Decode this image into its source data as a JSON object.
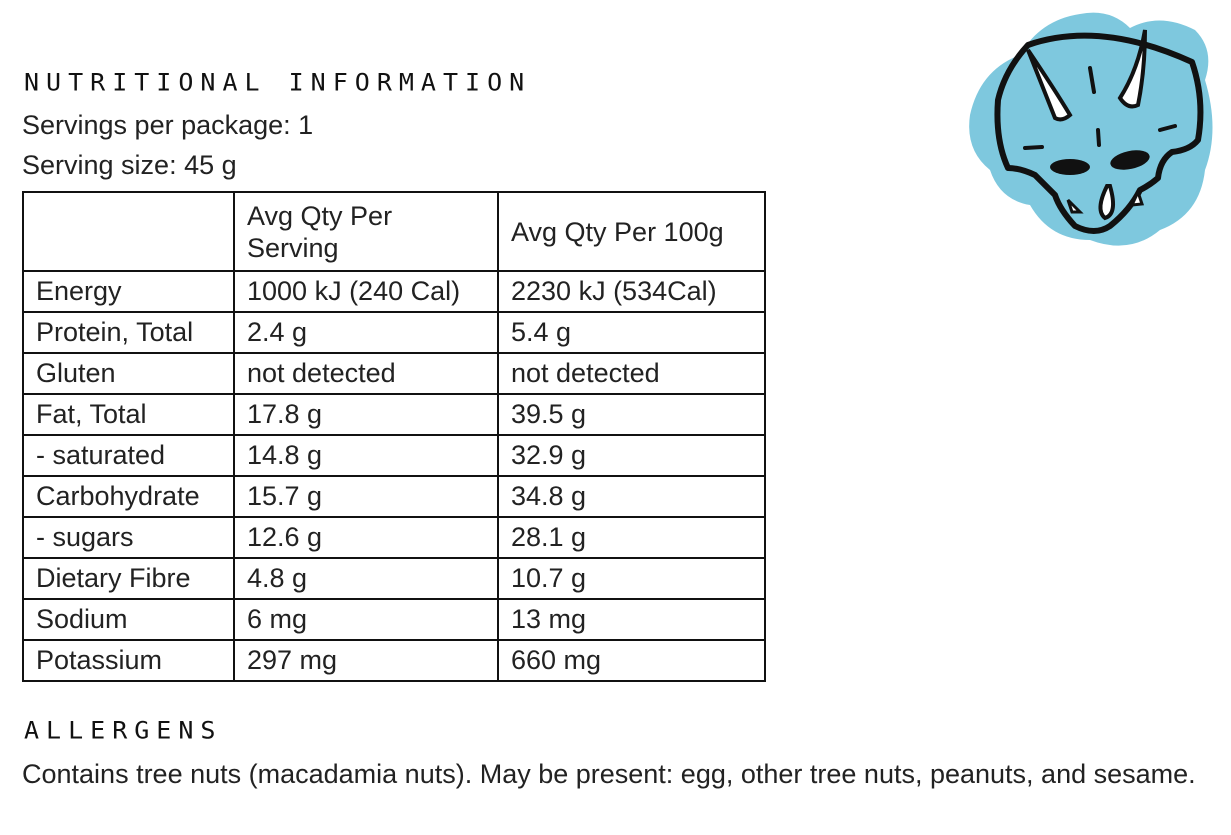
{
  "nutrition": {
    "heading": "NUTRITIONAL INFORMATION",
    "servings_per_package": "Servings per package: 1",
    "serving_size": "Serving size: 45 g",
    "table": {
      "headers": [
        "",
        "Avg Qty Per Serving",
        "Avg Qty Per 100g"
      ],
      "rows": [
        [
          "Energy",
          "1000 kJ (240 Cal)",
          "2230 kJ (534Cal)"
        ],
        [
          "Protein, Total",
          "2.4 g",
          "5.4 g"
        ],
        [
          "Gluten",
          "not detected",
          "not detected"
        ],
        [
          "Fat, Total",
          "17.8 g",
          "39.5 g"
        ],
        [
          "- saturated",
          "14.8 g",
          "32.9 g"
        ],
        [
          "Carbohydrate",
          "15.7 g",
          "34.8 g"
        ],
        [
          "- sugars",
          "12.6 g",
          "28.1 g"
        ],
        [
          "Dietary Fibre",
          "4.8 g",
          "10.7 g"
        ],
        [
          "Sodium",
          "6 mg",
          "13 mg"
        ],
        [
          "Potassium",
          "297 mg",
          "660 mg"
        ]
      ]
    }
  },
  "allergens": {
    "heading": "ALLERGENS",
    "text": "Contains tree nuts (macadamia nuts). May be present: egg, other tree nuts, peanuts, and sesame."
  },
  "logo": {
    "icon": "triceratops-skull-icon",
    "color": "#7ec8de"
  }
}
